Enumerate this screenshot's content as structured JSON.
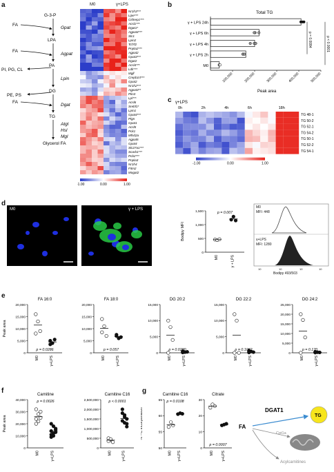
{
  "panel_a": {
    "letter": "a",
    "pathway": {
      "nodes": [
        "G-3-P",
        "LPA",
        "PA",
        "DG",
        "TG",
        "Glycerol FA"
      ],
      "enzymes": [
        "Gpat",
        "Agpat",
        "Lpin",
        "Dgat",
        "Atgl",
        "Hsl",
        "Mgl"
      ],
      "inputs": [
        "FA",
        "FA",
        "FA"
      ],
      "branches": [
        "PI, PG, CL",
        "PE, PS"
      ]
    },
    "heatmap": {
      "col_groups": [
        "M0",
        "γ+LPS"
      ],
      "genes": [
        "Nr1h3***",
        "Lipe***",
        "Cidnep1***",
        "Acsl1***",
        "Dgat1*",
        "Agpat4***",
        "Slc1",
        "Lpin2",
        "Tcf7l2",
        "Pnpla2***",
        "Agpat2",
        "Gpat3***",
        "Dgat2",
        "Acsl4***",
        "Ldlr***",
        "Mgll",
        "Crepb1rt***",
        "Gpat2",
        "Nr1h2***",
        "Agpat3**",
        "Plin3",
        "Lpl***",
        "Acsl6",
        "Srebf1*",
        "Lpin1",
        "Gpat4***",
        "Plgn",
        "Gpat1",
        "Acsl5",
        "Pck1",
        "Mfsd2a",
        "Agpat5",
        "Gpat4",
        "Slc27a1***",
        "Scarb1***",
        "Pcb2***",
        "Pnpla3",
        "Nr1h4",
        "Fitm2",
        "Mogat2"
      ],
      "colorbar": [
        "-1.00",
        "0.00",
        "1.00"
      ],
      "colors": {
        "low": "#2c3ec9",
        "mid": "#ffffff",
        "high": "#e8221a"
      }
    }
  },
  "panel_b": {
    "letter": "b",
    "chart_data": {
      "type": "bar",
      "title": "Total TG",
      "orientation": "horizontal",
      "categories": [
        "γ + LPS 24h",
        "γ + LPS 6h",
        "γ + LPS 4h",
        "γ + LPS 2h",
        "M0"
      ],
      "values": [
        410000,
        220000,
        200000,
        160000,
        40000
      ],
      "xlabel": "Peak area",
      "xticks": [
        "100,000",
        "200,000",
        "300,000",
        "400,000",
        "500,000"
      ],
      "xlim": [
        0,
        500000
      ],
      "pvalues": [
        "p = 0.0084",
        "p < 0.0001"
      ]
    }
  },
  "panel_c": {
    "letter": "c",
    "title": "γ+LPS",
    "timepoints": [
      "0h",
      "2h",
      "4h",
      "6h",
      "18h"
    ],
    "rows": [
      "TG 48-1",
      "TG 50-2",
      "TG 52-1",
      "TG 54-2",
      "TG 50-1",
      "TG 52-2",
      "TG 54-1"
    ],
    "colorbar": [
      "-1.00",
      "0.00",
      "1.00"
    ]
  },
  "panel_d": {
    "letter": "d",
    "image_labels": [
      "M0",
      "γ + LPS"
    ],
    "chart_data": {
      "type": "scatter",
      "ylabel": "Bodipy MFI",
      "categories": [
        "M0",
        "γ + LPS"
      ],
      "values": [
        [
          460,
          440,
          470
        ],
        [
          1180,
          1290,
          1150
        ]
      ],
      "ylim": [
        0,
        1500
      ],
      "yticks": [
        "0",
        "500",
        "1,000",
        "1,500"
      ],
      "pvalue": "p = 0.007"
    },
    "flow": {
      "m0": "M0",
      "m0_mfi": "MFI: 448",
      "lps": "γ+LPS",
      "lps_mfi": "MFI: 1280",
      "xlabel": "Bodipy 493/503"
    }
  },
  "panel_e": {
    "letter": "e",
    "ylabel": "Peak area",
    "plots": [
      {
        "title": "FA 16:0",
        "pvalue": "p = 0.0286",
        "yticks": [
          "0",
          "5,000",
          "10,000",
          "15,000",
          "20,000"
        ],
        "ymax": 20000,
        "m0": [
          16000,
          13000,
          9000,
          8000
        ],
        "lps": [
          5000,
          4000,
          5500,
          3500
        ]
      },
      {
        "title": "FA 18:0",
        "pvalue": "p = 0.057",
        "yticks": [
          "0",
          "5,000",
          "10,000",
          "15,000",
          "20,000"
        ],
        "ymax": 20000,
        "m0": [
          14000,
          11000,
          7000,
          8500
        ],
        "lps": [
          7000,
          6000,
          6500,
          7500
        ]
      },
      {
        "title": "DG 20:2",
        "pvalue": "p = 0.0280",
        "yticks": [
          "0",
          "5,000",
          "10,000",
          "15,000"
        ],
        "ymax": 15000,
        "m0": [
          10000,
          8000,
          4000,
          0
        ],
        "lps": [
          500,
          200,
          300,
          100
        ]
      },
      {
        "title": "DG 22:2",
        "pvalue": "p = 0.1062",
        "yticks": [
          "0",
          "5,000",
          "10,000",
          "15,000"
        ],
        "ymax": 15000,
        "m0": [
          12000,
          10000,
          0,
          0
        ],
        "lps": [
          700,
          400,
          200,
          100
        ]
      },
      {
        "title": "DG 24:2",
        "pvalue": "p = 0.170",
        "yticks": [
          "0",
          "5,000",
          "10,000",
          "15,000",
          "20,000",
          "25,000"
        ],
        "ymax": 25000,
        "m0": [
          20000,
          17000,
          8000,
          0
        ],
        "lps": [
          500,
          300,
          200,
          100
        ]
      }
    ],
    "categories": [
      "M0",
      "γ+LPS"
    ]
  },
  "panel_f": {
    "letter": "f",
    "ylabel": "Peak area",
    "plots": [
      {
        "title": "Carnitine",
        "pvalue": "p = 0.0026",
        "yticks": [
          "0",
          "10,000",
          "20,000",
          "30,000",
          "40,000"
        ],
        "ymax": 40000,
        "m0": [
          32000,
          28000,
          25000,
          24000,
          22000,
          30000,
          20000
        ],
        "lps": [
          20000,
          18000,
          15000,
          14000,
          12000,
          13000,
          11000,
          10000,
          16000,
          9000
        ]
      },
      {
        "title": "Carnitine C16",
        "pvalue": "p < 0.0001",
        "yticks": [
          "0",
          "500,000",
          "1,000,000",
          "1,500,000",
          "2,000,000",
          "2,500,000"
        ],
        "ymax": 2500000,
        "m0": [
          500000,
          400000,
          300000,
          350000,
          450000
        ],
        "lps": [
          2000000,
          1700000,
          1500000,
          1400000,
          1300000,
          1250000,
          1800000,
          1600000,
          1100000
        ]
      }
    ],
    "categories": [
      "M0",
      "γ+LPS"
    ]
  },
  "panel_g": {
    "letter": "g",
    "ylabel": "% ¹³C incorporation",
    "plots": [
      {
        "title": "Carnitine C16",
        "pvalue": "p = 0.0108",
        "yticks": [
          "50",
          "55",
          "60",
          "65"
        ],
        "ymin": 50,
        "ymax": 65,
        "m0": [
          56.5,
          58,
          57
        ],
        "lps": [
          60.5,
          60.8,
          60.6
        ]
      },
      {
        "title": "Citrate",
        "pvalue": "p = 0.0007",
        "yticks": [
          "0",
          "10",
          "20",
          "30"
        ],
        "ymin": 0,
        "ymax": 30,
        "m0": [
          25,
          27,
          26
        ],
        "lps": [
          14,
          14.5,
          15
        ]
      }
    ],
    "categories": [
      "M0",
      "γ+LPS"
    ],
    "schematic": {
      "fa": "FA",
      "dgat": "DGAT1",
      "tg": "TG",
      "cpt": "Cpt1a",
      "acyl": "Acylcarnitines"
    }
  }
}
